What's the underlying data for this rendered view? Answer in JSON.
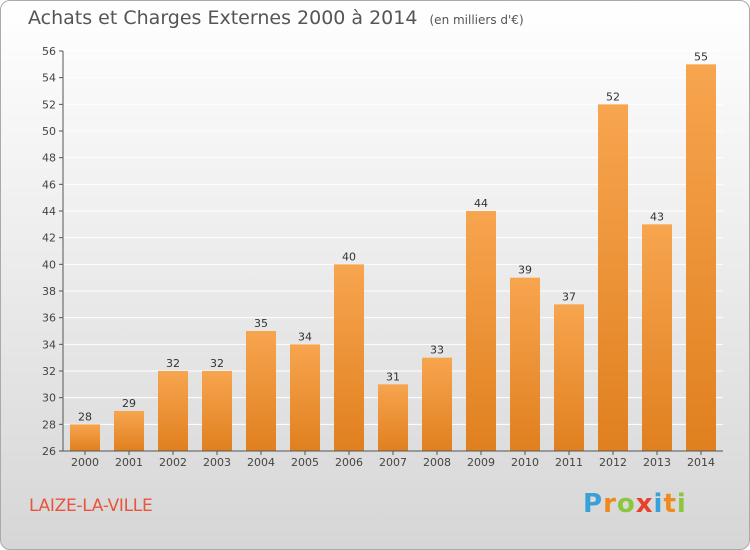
{
  "title": "Achats et Charges Externes 2000 à 2014",
  "subtitle": "(en milliers d'€)",
  "location": "LAIZE-LA-VILLE",
  "logo": {
    "letters": [
      "P",
      "r",
      "o",
      "x",
      "i",
      "t",
      "i"
    ],
    "colors": [
      "#3aa0d8",
      "#f08a1c",
      "#8cc63e",
      "#e8402a",
      "#3aa0d8",
      "#f08a1c",
      "#8cc63e"
    ]
  },
  "colors": {
    "bar_light": "#f7a54f",
    "bar_dark": "#e0801f",
    "axis": "#555555",
    "grid": "#ffffff"
  },
  "chart_data": {
    "type": "bar",
    "title": "Achats et Charges Externes 2000 à 2014",
    "subtitle": "(en milliers d'€)",
    "categories": [
      "2000",
      "2001",
      "2002",
      "2003",
      "2004",
      "2005",
      "2006",
      "2007",
      "2008",
      "2009",
      "2010",
      "2011",
      "2012",
      "2013",
      "2014"
    ],
    "values": [
      28,
      29,
      32,
      32,
      35,
      34,
      40,
      31,
      33,
      44,
      39,
      37,
      52,
      43,
      55
    ],
    "ylim": [
      26,
      56
    ],
    "yticks": [
      26,
      28,
      30,
      32,
      34,
      36,
      38,
      40,
      42,
      44,
      46,
      48,
      50,
      52,
      54,
      56
    ],
    "grid": true,
    "data_labels": true
  }
}
